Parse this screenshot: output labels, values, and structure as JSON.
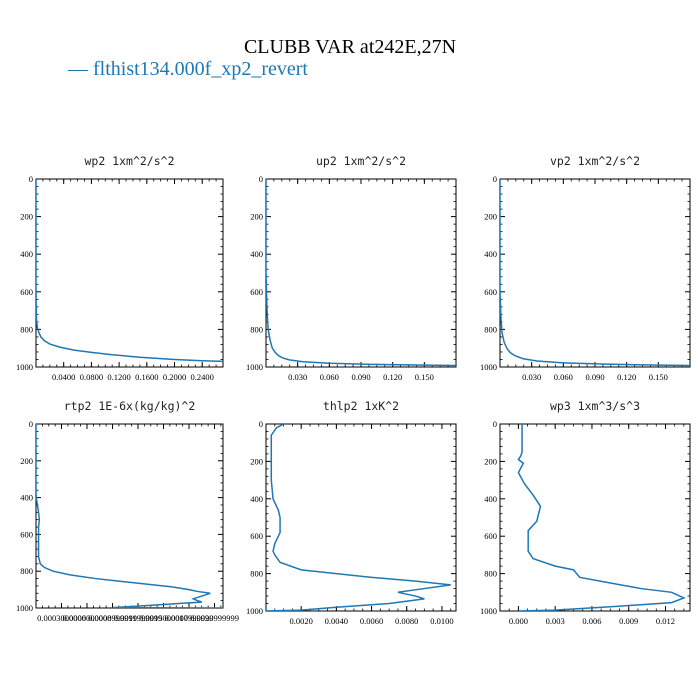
{
  "page": {
    "title": "CLUBB VAR at242E,27N",
    "legend_label": "— flthist134.000f_xp2_revert",
    "series_color": "#1f77b4"
  },
  "chart_data": [
    {
      "type": "line",
      "title": "wp2   1xm^2/s^2",
      "xlim": [
        0,
        0.27
      ],
      "ylim": [
        1000,
        0
      ],
      "x_ticks": [
        "0.0400",
        "0.0800",
        "0.1200",
        "0.1600",
        "0.2000",
        "0.2400"
      ],
      "x_tick_values": [
        0.04,
        0.08,
        0.12,
        0.16,
        0.2,
        0.24
      ],
      "y_ticks": [
        "0",
        "200",
        "400",
        "600",
        "800",
        "1000"
      ],
      "y_tick_values": [
        0,
        200,
        400,
        600,
        800,
        1000
      ],
      "series": [
        {
          "x": [
            0.0,
            0.0,
            0.0,
            0.0005,
            0.001,
            0.002,
            0.004,
            0.007,
            0.012,
            0.02,
            0.035,
            0.055,
            0.08,
            0.11,
            0.15,
            0.2,
            0.24,
            0.27
          ],
          "y": [
            0,
            300,
            600,
            720,
            760,
            790,
            815,
            840,
            860,
            878,
            895,
            910,
            922,
            935,
            948,
            960,
            967,
            970
          ]
        }
      ]
    },
    {
      "type": "line",
      "title": "up2   1xm^2/s^2",
      "xlim": [
        0,
        0.18
      ],
      "ylim": [
        1000,
        0
      ],
      "x_ticks": [
        "0.030",
        "0.060",
        "0.090",
        "0.120",
        "0.150"
      ],
      "x_tick_values": [
        0.03,
        0.06,
        0.09,
        0.12,
        0.15
      ],
      "y_ticks": [
        "0",
        "200",
        "400",
        "600",
        "800",
        "1000"
      ],
      "y_tick_values": [
        0,
        200,
        400,
        600,
        800,
        1000
      ],
      "series": [
        {
          "x": [
            0.0,
            0.0,
            0.001,
            0.002,
            0.004,
            0.006,
            0.009,
            0.012,
            0.016,
            0.022,
            0.035,
            0.06,
            0.1,
            0.15,
            0.18
          ],
          "y": [
            0,
            500,
            700,
            800,
            860,
            900,
            925,
            940,
            952,
            962,
            972,
            980,
            986,
            990,
            992
          ]
        }
      ]
    },
    {
      "type": "line",
      "title": "vp2   1xm^2/s^2",
      "xlim": [
        0,
        0.18
      ],
      "ylim": [
        1000,
        0
      ],
      "x_ticks": [
        "0.030",
        "0.060",
        "0.090",
        "0.120",
        "0.150"
      ],
      "x_tick_values": [
        0.03,
        0.06,
        0.09,
        0.12,
        0.15
      ],
      "y_ticks": [
        "0",
        "200",
        "400",
        "600",
        "800",
        "1000"
      ],
      "y_tick_values": [
        0,
        200,
        400,
        600,
        800,
        1000
      ],
      "series": [
        {
          "x": [
            0.0,
            0.0,
            0.001,
            0.002,
            0.004,
            0.007,
            0.01,
            0.015,
            0.022,
            0.035,
            0.06,
            0.1,
            0.15,
            0.18
          ],
          "y": [
            0,
            600,
            750,
            820,
            870,
            905,
            925,
            942,
            956,
            968,
            978,
            985,
            990,
            992
          ]
        }
      ]
    },
    {
      "type": "line",
      "title": "rtp2   1E-6x(kg/kg)^2",
      "xlim": [
        0,
        0.0022
      ],
      "ylim": [
        1000,
        0
      ],
      "x_ticks": [
        "0.0003000000",
        "0.0006000000",
        "0.0008999999",
        "0.0011999999",
        "0.0015000000",
        "0.0017999999",
        "0.0020999999"
      ],
      "x_tick_values": [
        0.0003,
        0.0006,
        0.0009,
        0.0012,
        0.0015,
        0.0018,
        0.0021
      ],
      "y_ticks": [
        "0",
        "200",
        "400",
        "600",
        "800",
        "1000"
      ],
      "y_tick_values": [
        0,
        200,
        400,
        600,
        800,
        1000
      ],
      "series": [
        {
          "x": [
            0.0,
            0.0,
            1e-05,
            3e-05,
            4e-05,
            3e-05,
            3e-05,
            5e-05,
            0.0001,
            0.0002,
            0.0004,
            0.0007,
            0.001,
            0.0013,
            0.0016,
            0.0018,
            0.0019,
            0.00205,
            0.00195,
            0.00185,
            0.0019,
            0.00195,
            0.0017,
            0.0012,
            0.0009,
            0.0022
          ],
          "y": [
            0,
            380,
            420,
            480,
            520,
            560,
            720,
            760,
            780,
            800,
            820,
            840,
            855,
            870,
            885,
            900,
            910,
            920,
            935,
            950,
            960,
            968,
            975,
            990,
            998,
            1000
          ]
        }
      ]
    },
    {
      "type": "line",
      "title": "thlp2   1xK^2",
      "xlim": [
        0,
        0.0108
      ],
      "ylim": [
        1000,
        0
      ],
      "x_ticks": [
        "0.0020",
        "0.0040",
        "0.0060",
        "0.0080",
        "0.0100"
      ],
      "x_tick_values": [
        0.002,
        0.004,
        0.006,
        0.008,
        0.01
      ],
      "y_ticks": [
        "0",
        "200",
        "400",
        "600",
        "800",
        "1000"
      ],
      "y_tick_values": [
        0,
        200,
        400,
        600,
        800,
        1000
      ],
      "series": [
        {
          "x": [
            0.001,
            0.0006,
            0.0003,
            0.0003,
            0.0004,
            0.0007,
            0.0008,
            0.0008,
            0.0005,
            0.0004,
            0.0005,
            0.0008,
            0.002,
            0.004,
            0.006,
            0.0085,
            0.0105,
            0.009,
            0.0075,
            0.0085,
            0.009,
            0.007,
            0.004,
            0.002,
            0.0
          ],
          "y": [
            0,
            20,
            60,
            300,
            400,
            460,
            500,
            580,
            640,
            680,
            700,
            740,
            780,
            800,
            820,
            840,
            860,
            880,
            900,
            920,
            935,
            960,
            980,
            995,
            1000
          ]
        }
      ]
    },
    {
      "type": "line",
      "title": "wp3   1xm^3/s^3",
      "xlim": [
        -0.0015,
        0.014
      ],
      "ylim": [
        1000,
        0
      ],
      "x_ticks": [
        "0.000",
        "0.003",
        "0.006",
        "0.009",
        "0.012"
      ],
      "x_tick_values": [
        0.0,
        0.003,
        0.006,
        0.009,
        0.012
      ],
      "y_ticks": [
        "0",
        "200",
        "400",
        "600",
        "800",
        "1000"
      ],
      "y_tick_values": [
        0,
        200,
        400,
        600,
        800,
        1000
      ],
      "series": [
        {
          "x": [
            0.0003,
            0.0003,
            0.0002,
            0.0,
            0.0004,
            0.0,
            0.0005,
            0.0012,
            0.0018,
            0.0015,
            0.0008,
            0.0008,
            0.0012,
            0.003,
            0.0045,
            0.005,
            0.0075,
            0.01,
            0.0125,
            0.0135,
            0.0125,
            0.008,
            0.003,
            0.0
          ],
          "y": [
            0,
            150,
            170,
            190,
            210,
            260,
            320,
            380,
            440,
            520,
            570,
            680,
            720,
            760,
            780,
            820,
            850,
            880,
            900,
            930,
            955,
            975,
            995,
            1000
          ]
        }
      ]
    }
  ]
}
